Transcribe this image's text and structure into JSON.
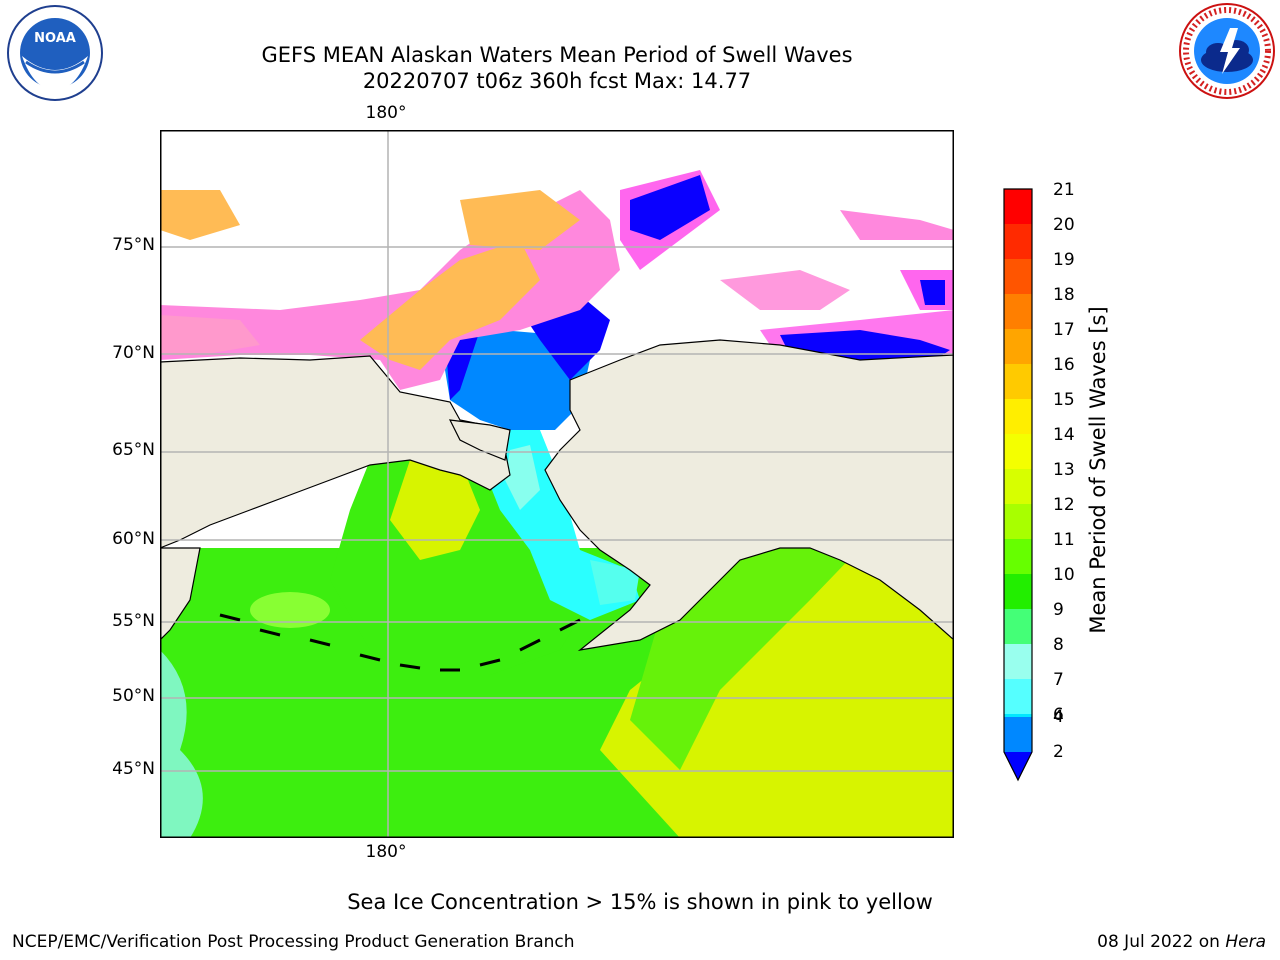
{
  "header": {
    "title_line1": "GEFS MEAN Alaskan Waters Mean Period of Swell Waves",
    "title_line2": "20220707 t06z 360h fcst   Max: 14.77",
    "left_logo": {
      "name": "noaa-logo",
      "text": "NOAA",
      "ring_text": "NATIONAL OCEANIC AND ATMOSPHERIC ADMINISTRATION",
      "bottom_text": "U.S. DEPARTMENT OF COMMERCE"
    },
    "right_logo": {
      "name": "nws-logo",
      "ring_text": "NATIONAL WEATHER SERVICE"
    }
  },
  "map": {
    "lon_label_top": "180°",
    "lon_label_bottom": "180°",
    "lat_labels": [
      "75°N",
      "70°N",
      "65°N",
      "60°N",
      "55°N",
      "50°N",
      "45°N"
    ],
    "colors": {
      "land": "#eeecdf",
      "ocean_main": "#d7f400",
      "ocean_green": "#3dee0f",
      "ocean_cyan": "#2affff",
      "ice_pink": "#ff88dd",
      "ice_orange": "#ffbb55",
      "deep_blue": "#0a00ff",
      "mid_blue": "#0088ff"
    }
  },
  "colorbar": {
    "label": "Mean Period of Swell Waves [s]",
    "ticks": [
      "21",
      "20",
      "19",
      "18",
      "17",
      "16",
      "15",
      "14",
      "13",
      "12",
      "11",
      "10",
      "9",
      "8",
      "7",
      "6",
      "4",
      "2"
    ],
    "colors": [
      "#ff0000",
      "#ff2a00",
      "#ff5500",
      "#ff7f00",
      "#ffa500",
      "#ffca00",
      "#ffee00",
      "#f4ff00",
      "#d7ff00",
      "#a8ff00",
      "#66ff00",
      "#22ee00",
      "#44ff77",
      "#99ffee",
      "#55ffff",
      "#00ffff",
      "#00e8ff",
      "#0088ff"
    ],
    "extend_color": "#0000ff"
  },
  "footer": {
    "note": "Sea Ice Concentration > 15% is shown in pink to yellow",
    "left": "NCEP/EMC/Verification Post Processing Product Generation Branch",
    "right_date": "08 Jul 2022 on",
    "right_host": "Hera"
  }
}
